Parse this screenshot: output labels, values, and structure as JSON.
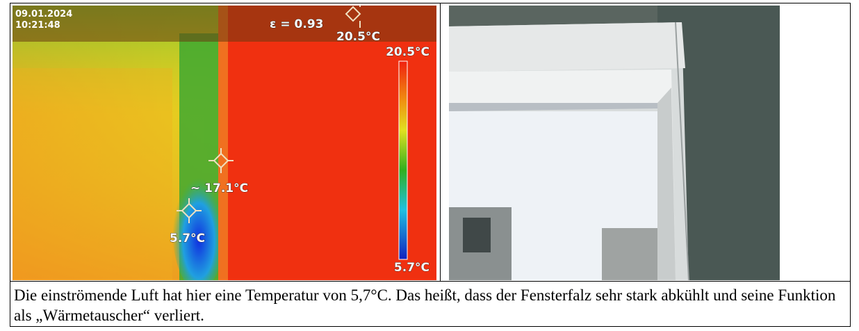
{
  "thermal_image": {
    "date": "09.01.2024",
    "time": "10:21:48",
    "emissivity": "ε = 0.93",
    "markers": [
      {
        "label": "20.5°C"
      },
      {
        "label": "~ 17.1°C"
      },
      {
        "label": "5.7°C"
      }
    ],
    "scale": {
      "max_label": "20.5°C",
      "min_label": "5.7°C"
    }
  },
  "caption": "Die einströmende Luft hat hier eine Temperatur von 5,7°C. Das heißt, dass der Fensterfalz sehr stark abkühlt und seine Funktion als „Wärmetauscher“ verliert."
}
